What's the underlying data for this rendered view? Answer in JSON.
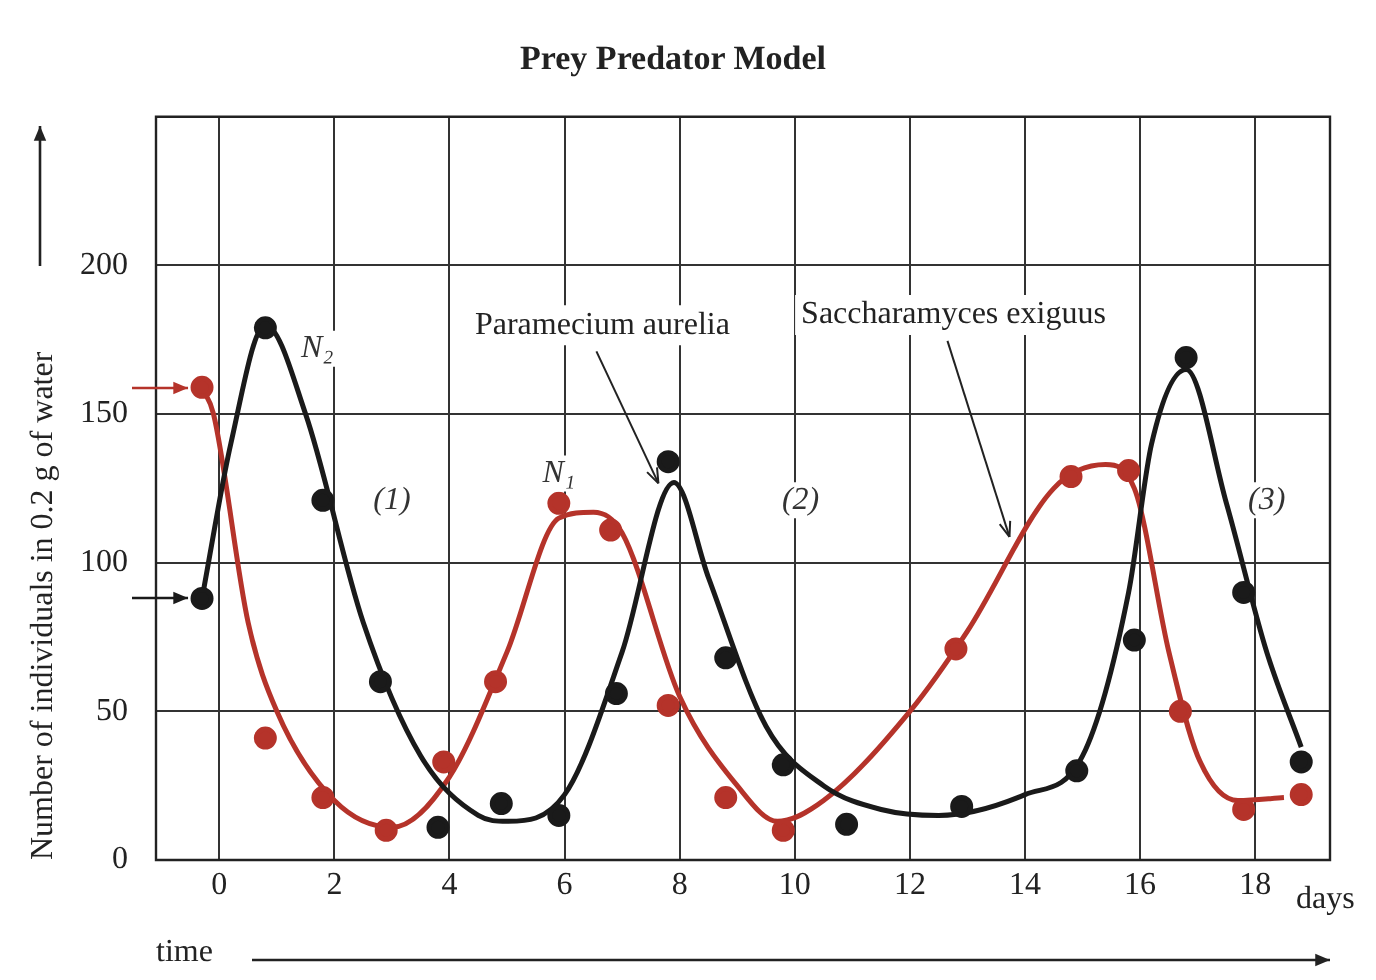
{
  "chart_data": {
    "type": "scatter",
    "title": "Prey Predator Model",
    "xlabel": "time",
    "ylabel": "Number of individuals in 0.2 g of water",
    "xlim": [
      -1.1,
      19.3
    ],
    "xticks": [
      0,
      2,
      4,
      6,
      8,
      10,
      12,
      14,
      16,
      18
    ],
    "ylim": [
      0,
      250
    ],
    "yticks": [
      0,
      50,
      100,
      150,
      200
    ],
    "grid": true,
    "legend": false,
    "marker": "circle",
    "series": [
      {
        "color": "#1a1a1a",
        "x": [
          -0.3,
          0.8,
          1.8,
          2.8,
          3.8,
          4.9,
          5.9,
          6.9,
          7.8,
          8.8,
          9.8,
          10.9,
          12.9,
          14.9,
          15.9,
          16.8,
          17.8,
          18.8
        ],
        "values": [
          88,
          179,
          121,
          60,
          11,
          19,
          15,
          56,
          134,
          68,
          32,
          12,
          18,
          30,
          74,
          169,
          90,
          33
        ]
      },
      {
        "type": "line",
        "color": "#1a1a1a",
        "marker": "none",
        "line_style": "solid",
        "x": [
          -0.3,
          0.2,
          0.8,
          1.5,
          2.5,
          3.5,
          4.5,
          5,
          6,
          7,
          7.9,
          8.5,
          9.5,
          10.5,
          11.5,
          12.5,
          14,
          15,
          15.8,
          16.2,
          16.8,
          17.5,
          18.2,
          18.8
        ],
        "values": [
          88,
          140,
          180,
          150,
          80,
          35,
          15,
          13,
          22,
          70,
          127,
          95,
          45,
          25,
          17,
          15,
          22,
          35,
          90,
          140,
          165,
          120,
          70,
          38
        ]
      },
      {
        "color": "#b5332a",
        "x": [
          -0.3,
          0.8,
          1.8,
          2.9,
          3.9,
          4.8,
          5.9,
          6.8,
          7.8,
          8.8,
          9.8,
          12.8,
          14.8,
          15.8,
          16.7,
          17.8,
          18.8
        ],
        "values": [
          159,
          41,
          21,
          10,
          33,
          60,
          120,
          111,
          52,
          21,
          10,
          71,
          129,
          131,
          50,
          17,
          22
        ]
      },
      {
        "type": "line",
        "color": "#b5332a",
        "marker": "none",
        "line_style": "solid",
        "x": [
          -0.3,
          -0.1,
          0.5,
          1,
          2,
          3,
          4,
          5,
          5.9,
          6.5,
          7,
          8,
          9,
          9.7,
          10.5,
          12,
          13,
          14.5,
          15.4,
          15.9,
          16.5,
          17,
          17.7,
          18.5
        ],
        "values": [
          159,
          150,
          80,
          50,
          20,
          11,
          28,
          70,
          115,
          117,
          110,
          55,
          25,
          13,
          20,
          50,
          77,
          125,
          133,
          125,
          70,
          35,
          20,
          21
        ]
      }
    ],
    "annotations": [
      {
        "text": "N₂",
        "x": 1.7,
        "y": 172
      },
      {
        "text": "N₁",
        "x": 5.9,
        "y": 130
      },
      {
        "text": "(1)",
        "x": 3,
        "y": 121
      },
      {
        "text": "(2)",
        "x": 10.1,
        "y": 121
      },
      {
        "text": "(3)",
        "x": 18.2,
        "y": 121
      },
      {
        "text": "Paramecium aurelia",
        "x": 7.7,
        "y": 124
      },
      {
        "text": "Saccharamyces exiguus",
        "x": 13.8,
        "y": 106
      },
      "days"
    ]
  }
}
